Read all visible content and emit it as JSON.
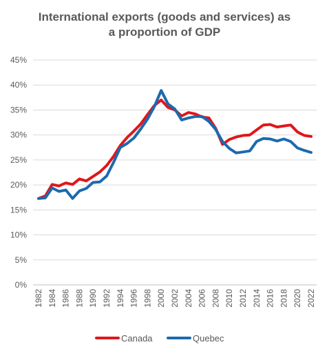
{
  "chart_data": {
    "type": "line",
    "title_line1": "International exports (goods and services) as",
    "title_line2": "a proportion of GDP",
    "xlabel": "",
    "ylabel": "",
    "ylim": [
      0,
      45
    ],
    "y_ticks": [
      0,
      5,
      10,
      15,
      20,
      25,
      30,
      35,
      40,
      45
    ],
    "y_tick_labels": [
      "0%",
      "5%",
      "10%",
      "15%",
      "20%",
      "25%",
      "30%",
      "35%",
      "40%",
      "45%"
    ],
    "x": [
      1982,
      1983,
      1984,
      1985,
      1986,
      1987,
      1988,
      1989,
      1990,
      1991,
      1992,
      1993,
      1994,
      1995,
      1996,
      1997,
      1998,
      1999,
      2000,
      2001,
      2002,
      2003,
      2004,
      2005,
      2006,
      2007,
      2008,
      2009,
      2010,
      2011,
      2012,
      2013,
      2014,
      2015,
      2016,
      2017,
      2018,
      2019,
      2020,
      2021,
      2022
    ],
    "x_tick_labels": [
      "1982",
      "1984",
      "1986",
      "1988",
      "1990",
      "1992",
      "1994",
      "1996",
      "1998",
      "2000",
      "2002",
      "2004",
      "2006",
      "2008",
      "2010",
      "2012",
      "2014",
      "2016",
      "2018",
      "2020",
      "2022"
    ],
    "gridlines": true,
    "legend_position": "bottom",
    "series": [
      {
        "name": "Canada",
        "color": "#e0161c",
        "values": [
          17.3,
          17.8,
          20.1,
          19.8,
          20.4,
          20.1,
          21.2,
          20.8,
          21.7,
          22.6,
          23.9,
          25.7,
          27.9,
          29.5,
          30.8,
          32.2,
          34.1,
          35.9,
          37.0,
          35.5,
          35.0,
          33.8,
          34.5,
          34.2,
          33.6,
          33.4,
          31.3,
          28.1,
          29.1,
          29.6,
          29.9,
          30.0,
          31.0,
          32.0,
          32.1,
          31.6,
          31.8,
          32.0,
          30.6,
          29.9,
          29.7
        ]
      },
      {
        "name": "Quebec",
        "color": "#1b6aae",
        "values": [
          17.3,
          17.4,
          19.4,
          18.7,
          19.0,
          17.3,
          18.8,
          19.3,
          20.5,
          20.6,
          21.8,
          24.5,
          27.5,
          28.3,
          29.4,
          31.2,
          33.2,
          35.7,
          38.9,
          36.2,
          35.2,
          33.0,
          33.4,
          33.7,
          33.7,
          32.7,
          31.1,
          28.7,
          27.3,
          26.4,
          26.6,
          26.8,
          28.7,
          29.3,
          29.2,
          28.8,
          29.2,
          28.7,
          27.4,
          26.9,
          26.5
        ]
      }
    ]
  }
}
